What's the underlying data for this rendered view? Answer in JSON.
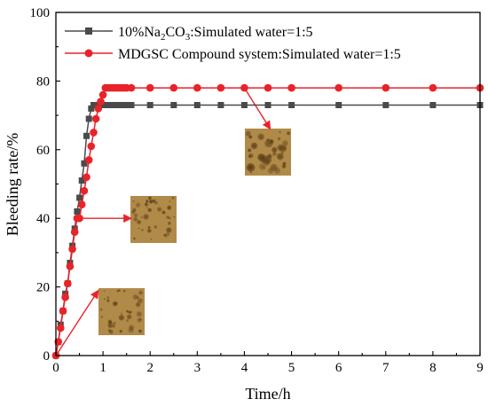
{
  "chart_data": {
    "type": "line",
    "xlabel": "Time/h",
    "ylabel": "Bleeding rate/%",
    "xlim": [
      0,
      9
    ],
    "ylim": [
      0,
      100
    ],
    "x_ticks": [
      "0",
      "1",
      "2",
      "3",
      "4",
      "5",
      "6",
      "7",
      "8",
      "9"
    ],
    "y_ticks": [
      "0",
      "20",
      "40",
      "60",
      "80",
      "100"
    ],
    "grid": false,
    "legend_position": "top-left",
    "series": [
      {
        "name": "10%Na2CO3:Simulated water=1:5",
        "legend_label": {
          "pre": "10%Na",
          "sub1": "2",
          "mid": "CO",
          "sub2": "3",
          "post": ":Simulated water=1:5"
        },
        "color": "#4a4a4a",
        "marker": "square",
        "x": [
          0,
          0.05,
          0.1,
          0.15,
          0.2,
          0.25,
          0.3,
          0.35,
          0.4,
          0.45,
          0.5,
          0.55,
          0.6,
          0.65,
          0.7,
          0.75,
          0.8,
          0.85,
          0.9,
          0.95,
          1.0,
          1.05,
          1.1,
          1.15,
          1.2,
          1.25,
          1.3,
          1.35,
          1.4,
          1.45,
          1.5,
          1.6,
          2,
          2.5,
          3,
          3.5,
          4,
          4.5,
          5,
          6,
          7,
          8,
          9
        ],
        "y": [
          0,
          4,
          9,
          13,
          18,
          21,
          27,
          32,
          37,
          42,
          46,
          51,
          56,
          64,
          69,
          72,
          73,
          73,
          73,
          73,
          73,
          73,
          73,
          73,
          73,
          73,
          73,
          73,
          73,
          73,
          73,
          73,
          73,
          73,
          73,
          73,
          73,
          73,
          73,
          73,
          73,
          73,
          73
        ]
      },
      {
        "name": "MDGSC Compound system:Simulated water=1:5",
        "legend_label": {
          "pre": "MDGSC Compound system:Simulated water=1:5"
        },
        "color": "#e8232a",
        "marker": "circle",
        "x": [
          0,
          0.05,
          0.1,
          0.15,
          0.2,
          0.25,
          0.3,
          0.35,
          0.4,
          0.45,
          0.5,
          0.55,
          0.6,
          0.65,
          0.7,
          0.75,
          0.8,
          0.85,
          0.9,
          0.95,
          1.0,
          1.05,
          1.1,
          1.15,
          1.2,
          1.25,
          1.3,
          1.35,
          1.4,
          1.45,
          1.5,
          1.6,
          2,
          2.5,
          3,
          3.5,
          4,
          4.5,
          5,
          6,
          7,
          8,
          9
        ],
        "y": [
          0,
          4,
          8,
          13,
          17,
          21,
          26,
          31,
          36,
          40,
          40,
          44,
          48,
          52,
          57,
          61,
          65,
          69,
          72,
          74,
          76,
          78,
          78,
          78,
          78,
          78,
          78,
          78,
          78,
          78,
          78,
          78,
          78,
          78,
          78,
          78,
          78,
          78,
          78,
          78,
          78,
          78,
          78
        ]
      }
    ],
    "annotations": [
      {
        "type": "image-inset",
        "description": "micrograph",
        "arrow_from_x": 0.0,
        "arrow_from_y": 0,
        "arrow_to_x": 0.9,
        "arrow_to_y": 19
      },
      {
        "type": "image-inset",
        "description": "micrograph",
        "arrow_from_x": 0.5,
        "arrow_from_y": 40,
        "arrow_to_x": 1.6,
        "arrow_to_y": 40
      },
      {
        "type": "image-inset",
        "description": "micrograph",
        "arrow_from_x": 4.0,
        "arrow_from_y": 78,
        "arrow_to_x": 4.55,
        "arrow_to_y": 66
      }
    ]
  },
  "colors": {
    "axis": "#000000",
    "series_gray": "#4a4a4a",
    "series_red": "#e8232a",
    "arrow": "#e8232a",
    "inset_base": "#b08a48"
  }
}
